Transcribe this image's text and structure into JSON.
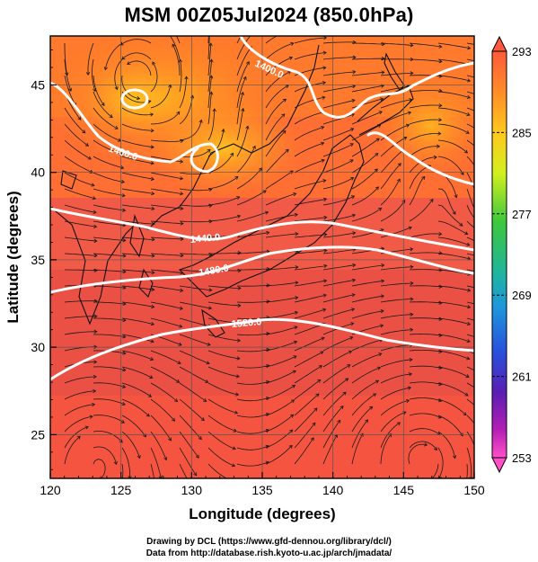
{
  "title": "MSM 00Z05Jul2024 (850.0hPa)",
  "x_axis": {
    "label": "Longitude (degrees)",
    "ticks": [
      "120",
      "125",
      "130",
      "135",
      "140",
      "145",
      "150"
    ]
  },
  "y_axis": {
    "label": "Latitude  (degrees)",
    "ticks": [
      "25",
      "30",
      "35",
      "40",
      "45"
    ]
  },
  "colorbar": {
    "ticks": [
      "293",
      "285",
      "277",
      "269",
      "261",
      "253"
    ],
    "colors_top_to_bottom": [
      "#ff5a3c",
      "#ff8c28",
      "#ffc81e",
      "#d2f01e",
      "#3cc83c",
      "#1eb4a0",
      "#1e96dc",
      "#2850dc",
      "#5a1eb4",
      "#b41eb4",
      "#ff50c8"
    ]
  },
  "contours": [
    {
      "label": "1400.0"
    },
    {
      "label": "1400.0"
    },
    {
      "label": "1440.0"
    },
    {
      "label": "1480.0"
    },
    {
      "label": "1520.0"
    }
  ],
  "credits": {
    "line1": "Drawing by DCL (https://www.gfd-dennou.org/library/dcl/)",
    "line2": "Data from http://database.rish.kyoto-u.ac.jp/arch/jmadata/"
  }
}
